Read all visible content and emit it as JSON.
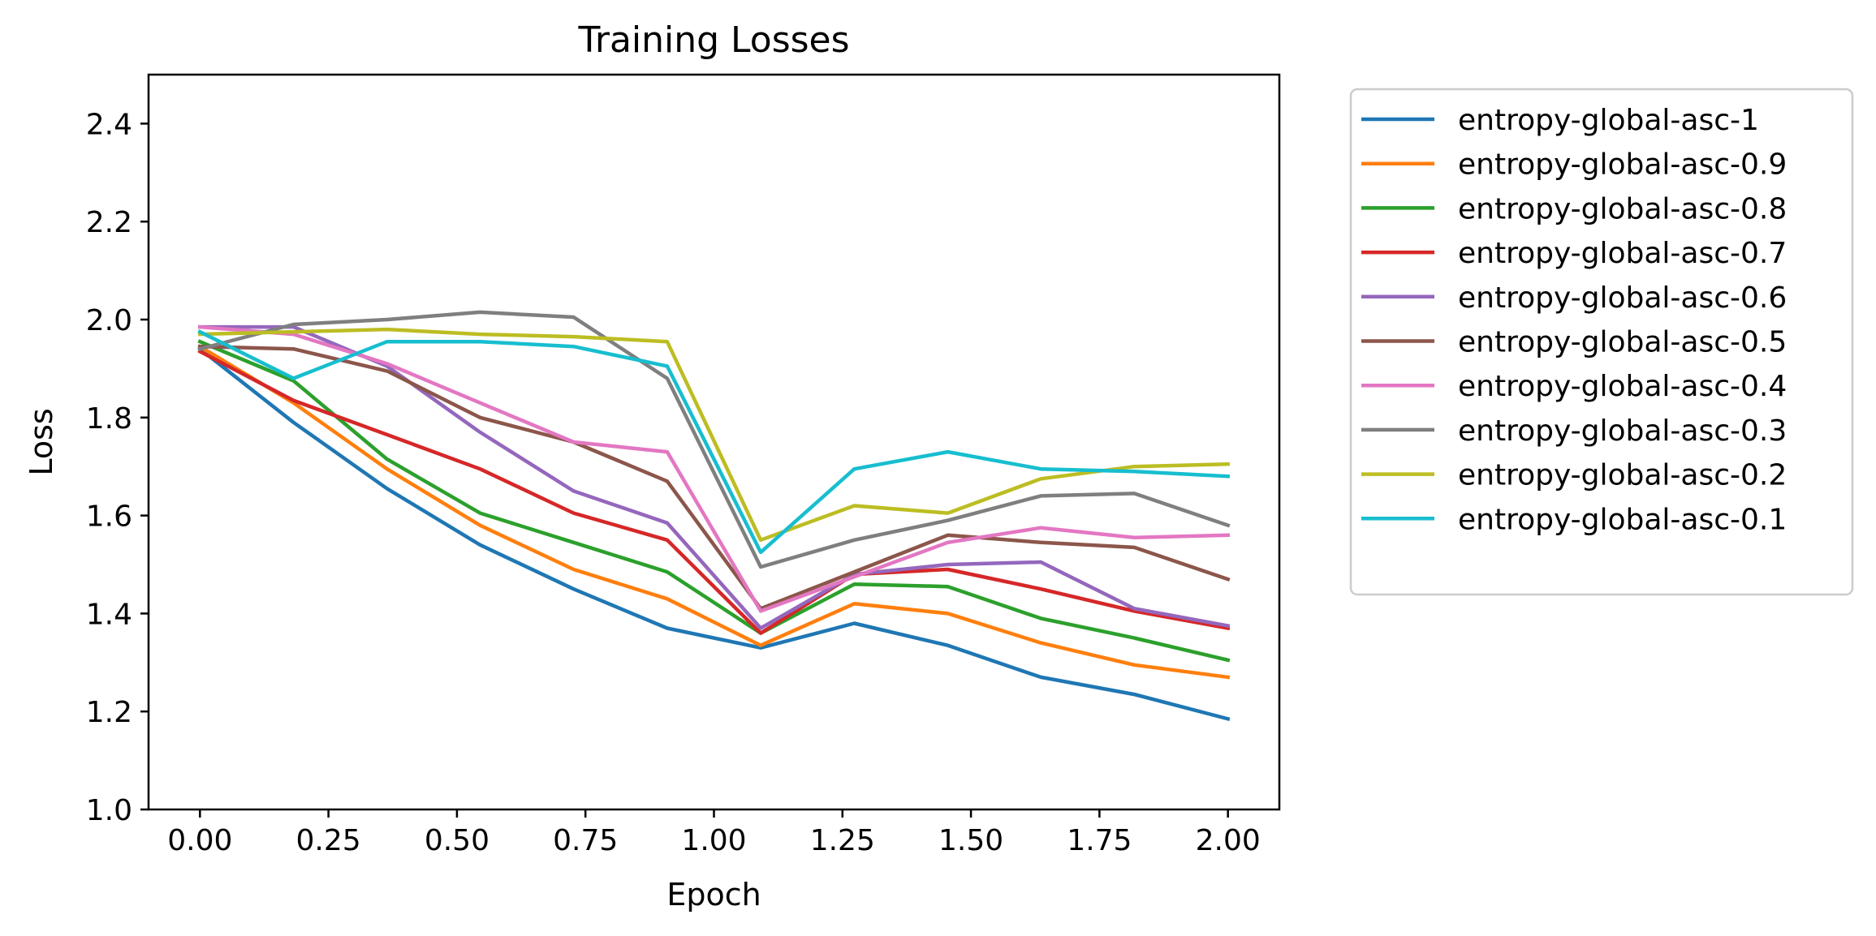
{
  "chart_data": {
    "type": "line",
    "title": "Training Losses",
    "xlabel": "Epoch",
    "ylabel": "Loss",
    "xlim": [
      -0.1,
      2.1
    ],
    "ylim": [
      1.0,
      2.5
    ],
    "xticks": [
      0.0,
      0.25,
      0.5,
      0.75,
      1.0,
      1.25,
      1.5,
      1.75,
      2.0
    ],
    "xtick_labels": [
      "0.00",
      "0.25",
      "0.50",
      "0.75",
      "1.00",
      "1.25",
      "1.50",
      "1.75",
      "2.00"
    ],
    "yticks": [
      1.0,
      1.2,
      1.4,
      1.6,
      1.8,
      2.0,
      2.2,
      2.4
    ],
    "ytick_labels": [
      "1.0",
      "1.2",
      "1.4",
      "1.6",
      "1.8",
      "2.0",
      "2.2",
      "2.4"
    ],
    "grid": false,
    "legend_position": "outside-right",
    "x": [
      0.0,
      0.182,
      0.364,
      0.545,
      0.727,
      0.909,
      1.091,
      1.273,
      1.455,
      1.636,
      1.818,
      2.0
    ],
    "series": [
      {
        "name": "entropy-global-asc-1",
        "color": "#1f77b4",
        "values": [
          1.94,
          1.79,
          1.655,
          1.54,
          1.45,
          1.37,
          1.33,
          1.38,
          1.335,
          1.27,
          1.235,
          1.185
        ]
      },
      {
        "name": "entropy-global-asc-0.9",
        "color": "#ff7f0e",
        "values": [
          1.945,
          1.83,
          1.695,
          1.58,
          1.49,
          1.43,
          1.335,
          1.42,
          1.4,
          1.34,
          1.295,
          1.27
        ]
      },
      {
        "name": "entropy-global-asc-0.8",
        "color": "#2ca02c",
        "values": [
          1.955,
          1.875,
          1.715,
          1.605,
          1.545,
          1.485,
          1.36,
          1.46,
          1.455,
          1.39,
          1.35,
          1.305
        ]
      },
      {
        "name": "entropy-global-asc-0.7",
        "color": "#d62728",
        "values": [
          1.935,
          1.835,
          1.765,
          1.695,
          1.605,
          1.55,
          1.36,
          1.48,
          1.49,
          1.45,
          1.405,
          1.37
        ]
      },
      {
        "name": "entropy-global-asc-0.6",
        "color": "#9467bd",
        "values": [
          1.985,
          1.985,
          1.905,
          1.77,
          1.65,
          1.585,
          1.37,
          1.48,
          1.5,
          1.505,
          1.41,
          1.375
        ]
      },
      {
        "name": "entropy-global-asc-0.5",
        "color": "#8c564b",
        "values": [
          1.945,
          1.94,
          1.895,
          1.8,
          1.75,
          1.67,
          1.41,
          1.485,
          1.56,
          1.545,
          1.535,
          1.47
        ]
      },
      {
        "name": "entropy-global-asc-0.4",
        "color": "#e377c2",
        "values": [
          1.985,
          1.97,
          1.91,
          1.83,
          1.75,
          1.73,
          1.405,
          1.475,
          1.545,
          1.575,
          1.555,
          1.56
        ]
      },
      {
        "name": "entropy-global-asc-0.3",
        "color": "#7f7f7f",
        "values": [
          1.94,
          1.99,
          2.0,
          2.015,
          2.005,
          1.88,
          1.495,
          1.55,
          1.59,
          1.64,
          1.645,
          1.58
        ]
      },
      {
        "name": "entropy-global-asc-0.2",
        "color": "#bcbd22",
        "values": [
          1.97,
          1.975,
          1.98,
          1.97,
          1.965,
          1.955,
          1.55,
          1.62,
          1.605,
          1.675,
          1.7,
          1.705
        ]
      },
      {
        "name": "entropy-global-asc-0.1",
        "color": "#17becf",
        "values": [
          1.975,
          1.88,
          1.955,
          1.955,
          1.945,
          1.905,
          1.525,
          1.695,
          1.73,
          1.695,
          1.69,
          1.68
        ]
      }
    ]
  }
}
